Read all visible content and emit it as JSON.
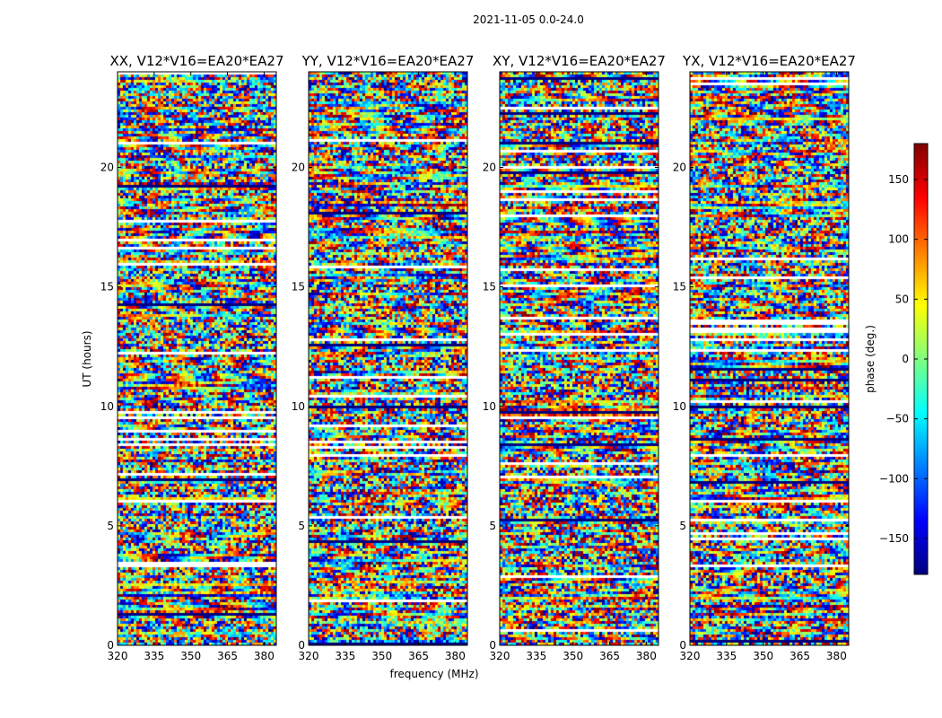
{
  "chart_data": {
    "type": "heatmap",
    "suptitle": "2021-11-05 0.0-24.0",
    "xlabel": "frequency (MHz)",
    "ylabel": "UT (hours)",
    "xlim": [
      320,
      385
    ],
    "ylim": [
      0,
      24
    ],
    "xticks": [
      "320",
      "335",
      "350",
      "365",
      "380"
    ],
    "yticks": [
      "0",
      "5",
      "10",
      "15",
      "20"
    ],
    "colorbar": {
      "label": "phase (deg.)",
      "range": [
        -180,
        180
      ],
      "ticks": [
        "150",
        "100",
        "50",
        "0",
        "−50",
        "−100",
        "−150"
      ],
      "tick_values": [
        150,
        100,
        50,
        0,
        -50,
        -100,
        -150
      ],
      "colormap": [
        "#00007f",
        "#0000ff",
        "#007fff",
        "#00ffff",
        "#7fff7f",
        "#ffff00",
        "#ff7f00",
        "#ff0000",
        "#7f0000"
      ]
    },
    "panels": [
      {
        "title": "XX, V12*V16=EA20*EA27"
      },
      {
        "title": "YY, V12*V16=EA20*EA27"
      },
      {
        "title": "XY, V12*V16=EA20*EA27"
      },
      {
        "title": "YX, V12*V16=EA20*EA27"
      }
    ]
  }
}
